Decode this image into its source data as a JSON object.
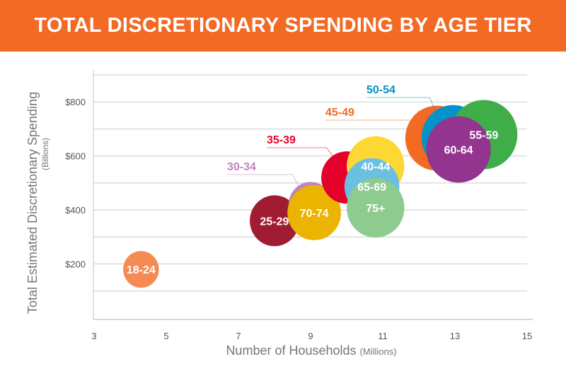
{
  "header": {
    "title": "TOTAL DISCRETIONARY SPENDING BY AGE TIER",
    "color": "#f26a24"
  },
  "chart_data": {
    "type": "scatter",
    "subtype": "bubble",
    "title": "TOTAL DISCRETIONARY SPENDING BY AGE TIER",
    "xlabel": "Number of Households",
    "xlabel_unit": "(Millions)",
    "ylabel": "Total Estimated Discretionary Spending",
    "ylabel_unit": "(Billions)",
    "xlim": [
      3,
      15
    ],
    "ylim": [
      0,
      900
    ],
    "x_ticks": [
      "3",
      "5",
      "7",
      "9",
      "11",
      "13",
      "15"
    ],
    "y_ticks": [
      "$200",
      "$400",
      "$600",
      "$800"
    ],
    "grid": true,
    "legend": "none",
    "points": [
      {
        "label": "18-24",
        "x": 4.3,
        "y": 180,
        "size": 26,
        "color": "#f58a53",
        "label_outside": false
      },
      {
        "label": "25-29",
        "x": 8.0,
        "y": 360,
        "size": 36,
        "color": "#a01c32",
        "label_outside": false
      },
      {
        "label": "30-34",
        "x": 9.0,
        "y": 420,
        "size": 32,
        "color": "#c084b8",
        "label_outside": true
      },
      {
        "label": "70-74",
        "x": 9.1,
        "y": 390,
        "size": 39,
        "color": "#ebb400",
        "label_outside": false
      },
      {
        "label": "35-39",
        "x": 10.0,
        "y": 520,
        "size": 37,
        "color": "#e4002b",
        "label_outside": true
      },
      {
        "label": "40-44",
        "x": 10.8,
        "y": 563,
        "size": 42,
        "color": "#fdd835",
        "label_outside": false
      },
      {
        "label": "65-69",
        "x": 10.7,
        "y": 487,
        "size": 40,
        "color": "#6bbfe0",
        "label_outside": false
      },
      {
        "label": "75+",
        "x": 10.8,
        "y": 408,
        "size": 42,
        "color": "#8ecb8f",
        "label_outside": false
      },
      {
        "label": "45-49",
        "x": 12.5,
        "y": 666,
        "size": 46,
        "color": "#f26a24",
        "label_outside": true
      },
      {
        "label": "50-54",
        "x": 12.95,
        "y": 668,
        "size": 46,
        "color": "#0592c8",
        "label_outside": true
      },
      {
        "label": "55-59",
        "x": 13.8,
        "y": 679,
        "size": 49,
        "color": "#3fae49",
        "label_outside": false
      },
      {
        "label": "60-64",
        "x": 13.1,
        "y": 624,
        "size": 47,
        "color": "#93348f",
        "label_outside": false
      }
    ]
  }
}
